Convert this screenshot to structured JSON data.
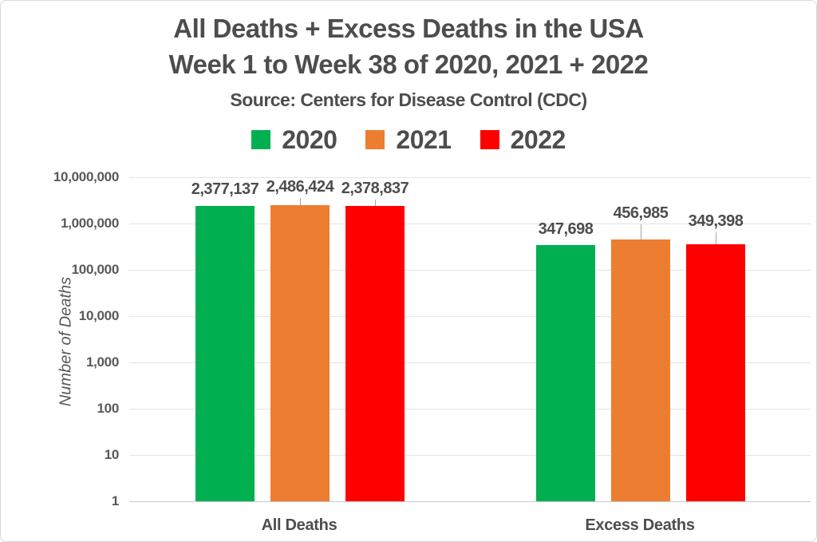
{
  "title": {
    "line1": "All Deaths + Excess Deaths in the USA",
    "line2": "Week 1 to Week 38 of 2020, 2021 + 2022",
    "source": "Source: Centers for Disease Control (CDC)"
  },
  "legend": [
    {
      "label": "2020",
      "color": "#00B050"
    },
    {
      "label": "2021",
      "color": "#ED7D31"
    },
    {
      "label": "2022",
      "color": "#FF0000"
    }
  ],
  "y_axis": {
    "title": "Number of Deaths",
    "ticks": [
      "10,000,000",
      "1,000,000",
      "100,000",
      "10,000",
      "1,000",
      "100",
      "10",
      "1"
    ]
  },
  "chart_data": {
    "type": "bar",
    "scale": "log10",
    "title": "All Deaths + Excess Deaths in the USA",
    "subtitle": "Week 1 to Week 38 of 2020, 2021 + 2022",
    "source": "Source: Centers for Disease Control (CDC)",
    "categories": [
      "All Deaths",
      "Excess Deaths"
    ],
    "series": [
      {
        "name": "2020",
        "color": "#00B050",
        "values": [
          2377137,
          347698
        ],
        "labels": [
          "2,377,137",
          "347,698"
        ]
      },
      {
        "name": "2021",
        "color": "#ED7D31",
        "values": [
          2486424,
          456985
        ],
        "labels": [
          "2,486,424",
          "456,985"
        ]
      },
      {
        "name": "2022",
        "color": "#FF0000",
        "values": [
          2378837,
          349398
        ],
        "labels": [
          "2,378,837",
          "349,398"
        ]
      }
    ],
    "xlabel": "",
    "ylabel": "Number of Deaths",
    "ylim": [
      1,
      10000000
    ],
    "grid": true,
    "legend_position": "top"
  }
}
